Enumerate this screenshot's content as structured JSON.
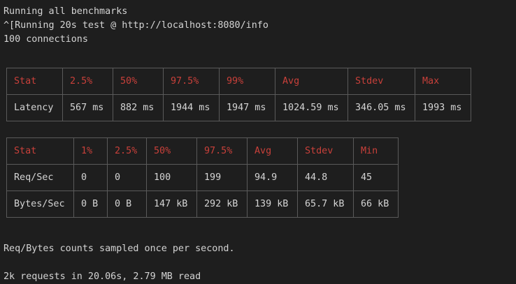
{
  "terminal": {
    "lines_top": [
      "Running all benchmarks",
      "^[Running 20s test @ http://localhost:8080/info",
      "100 connections"
    ],
    "footer_note": "Req/Bytes counts sampled once per second.",
    "summary": "2k requests in 20.06s, 2.79 MB read"
  },
  "latency_table": {
    "headers": [
      "Stat",
      "2.5%",
      "50%",
      "97.5%",
      "99%",
      "Avg",
      "Stdev",
      "Max"
    ],
    "rows": [
      [
        "Latency",
        "567 ms",
        "882 ms",
        "1944 ms",
        "1947 ms",
        "1024.59 ms",
        "346.05 ms",
        "1993 ms"
      ]
    ]
  },
  "throughput_table": {
    "headers": [
      "Stat",
      "1%",
      "2.5%",
      "50%",
      "97.5%",
      "Avg",
      "Stdev",
      "Min"
    ],
    "rows": [
      [
        "Req/Sec",
        "0",
        "0",
        "100",
        "199",
        "94.9",
        "44.8",
        "45"
      ],
      [
        "Bytes/Sec",
        "0 B",
        "0 B",
        "147 kB",
        "292 kB",
        "139 kB",
        "65.7 kB",
        "66 kB"
      ]
    ]
  },
  "colors": {
    "background": "#1e1e1e",
    "text": "#d4d4d4",
    "header_text": "#c8403a",
    "border": "#5a5a5a"
  }
}
